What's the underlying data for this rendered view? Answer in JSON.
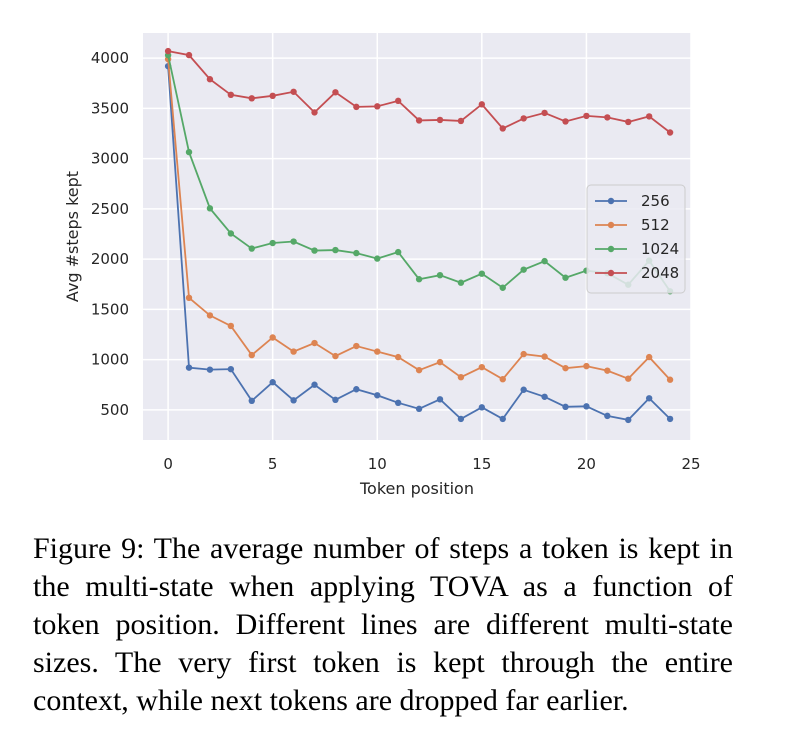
{
  "chart_data": {
    "type": "line",
    "title": "",
    "xlabel": "Token position",
    "ylabel": "Avg #steps kept",
    "xlim": [
      -1.2,
      25.0
    ],
    "ylim": [
      200,
      4250
    ],
    "xticks": [
      0,
      5,
      10,
      15,
      20,
      25
    ],
    "yticks": [
      500,
      1000,
      1500,
      2000,
      2500,
      3000,
      3500,
      4000
    ],
    "grid": true,
    "legend_position": "center-right",
    "x": [
      0,
      1,
      2,
      3,
      4,
      5,
      6,
      7,
      8,
      9,
      10,
      11,
      12,
      13,
      14,
      15,
      16,
      17,
      18,
      19,
      20,
      21,
      22,
      23,
      24
    ],
    "series": [
      {
        "name": "256",
        "color": "#4c72b0",
        "values": [
          3920,
          920,
          900,
          905,
          590,
          775,
          595,
          750,
          600,
          705,
          645,
          570,
          510,
          605,
          410,
          525,
          410,
          700,
          630,
          530,
          535,
          440,
          400,
          615,
          410
        ]
      },
      {
        "name": "512",
        "color": "#dd8452",
        "values": [
          3990,
          1615,
          1440,
          1335,
          1045,
          1220,
          1080,
          1165,
          1035,
          1135,
          1080,
          1025,
          895,
          975,
          825,
          925,
          805,
          1055,
          1030,
          915,
          935,
          890,
          810,
          1025,
          800
        ]
      },
      {
        "name": "1024",
        "color": "#55a868",
        "values": [
          4030,
          3065,
          2505,
          2255,
          2105,
          2160,
          2175,
          2085,
          2090,
          2060,
          2005,
          2070,
          1800,
          1840,
          1765,
          1855,
          1715,
          1895,
          1980,
          1815,
          1885,
          1860,
          1745,
          1985,
          1680
        ]
      },
      {
        "name": "2048",
        "color": "#c44e52",
        "values": [
          4070,
          4030,
          3790,
          3635,
          3600,
          3625,
          3665,
          3460,
          3660,
          3515,
          3520,
          3575,
          3380,
          3385,
          3375,
          3540,
          3300,
          3400,
          3455,
          3370,
          3425,
          3410,
          3365,
          3420,
          3260
        ]
      }
    ]
  },
  "caption": "Figure 9: The average number of steps a token is kept in the multi-state when applying TOVA as a function of token position. Different lines are different multi-state sizes. The very first token is kept through the entire context, while next tokens are dropped far earlier."
}
